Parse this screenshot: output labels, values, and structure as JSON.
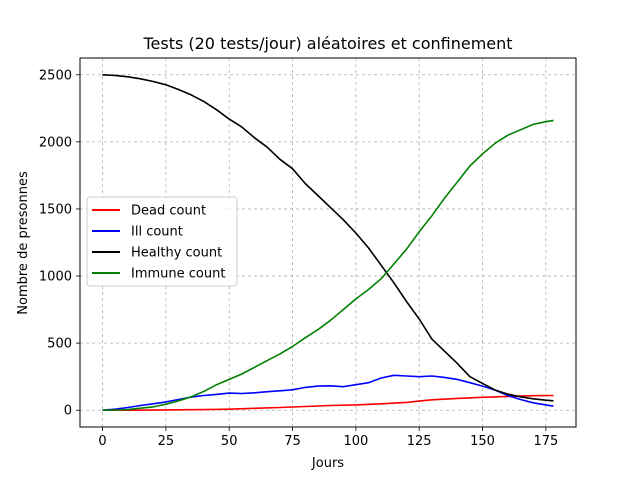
{
  "chart_data": {
    "type": "line",
    "title": "Tests (20 tests/jour) aléatoires et confinement",
    "xlabel": "Jours",
    "ylabel": "Nombre de presonnes",
    "xlim": [
      -8.9,
      186.9
    ],
    "ylim": [
      -125,
      2625
    ],
    "xticks": [
      0,
      25,
      50,
      75,
      100,
      125,
      150,
      175
    ],
    "yticks": [
      0,
      500,
      1000,
      1500,
      2000,
      2500
    ],
    "grid": true,
    "legend_position": "center-left",
    "series": [
      {
        "name": "Dead count",
        "color": "#ff0000",
        "x": [
          0,
          10,
          20,
          30,
          40,
          50,
          60,
          70,
          80,
          90,
          100,
          110,
          120,
          125,
          130,
          140,
          150,
          160,
          170,
          178
        ],
        "y": [
          0,
          0,
          1,
          3,
          5,
          8,
          14,
          20,
          28,
          35,
          40,
          48,
          58,
          68,
          78,
          88,
          96,
          103,
          108,
          110
        ]
      },
      {
        "name": "Ill count",
        "color": "#0000ff",
        "x": [
          0,
          5,
          10,
          15,
          20,
          25,
          30,
          35,
          40,
          45,
          50,
          55,
          60,
          65,
          70,
          75,
          80,
          85,
          90,
          95,
          100,
          105,
          110,
          115,
          120,
          125,
          130,
          135,
          140,
          145,
          150,
          155,
          160,
          165,
          170,
          175,
          178
        ],
        "y": [
          0,
          8,
          20,
          35,
          48,
          62,
          80,
          98,
          110,
          118,
          128,
          125,
          130,
          138,
          145,
          152,
          170,
          180,
          182,
          175,
          190,
          205,
          240,
          260,
          255,
          250,
          255,
          245,
          230,
          205,
          180,
          150,
          110,
          80,
          55,
          40,
          30
        ]
      },
      {
        "name": "Healthy count",
        "color": "#000000",
        "x": [
          0,
          5,
          10,
          15,
          20,
          25,
          30,
          35,
          40,
          45,
          50,
          55,
          60,
          65,
          70,
          75,
          80,
          85,
          90,
          95,
          100,
          105,
          110,
          115,
          120,
          125,
          130,
          135,
          140,
          145,
          150,
          155,
          160,
          165,
          170,
          175,
          178
        ],
        "y": [
          2500,
          2495,
          2485,
          2470,
          2450,
          2425,
          2390,
          2350,
          2300,
          2240,
          2170,
          2110,
          2030,
          1960,
          1870,
          1800,
          1690,
          1600,
          1510,
          1420,
          1320,
          1210,
          1080,
          950,
          810,
          680,
          530,
          440,
          350,
          250,
          200,
          150,
          120,
          100,
          85,
          75,
          70
        ]
      },
      {
        "name": "Immune count",
        "color": "#008000",
        "x": [
          0,
          5,
          10,
          15,
          20,
          25,
          30,
          35,
          40,
          45,
          50,
          55,
          60,
          65,
          70,
          75,
          80,
          85,
          90,
          95,
          100,
          105,
          110,
          115,
          120,
          125,
          130,
          135,
          140,
          145,
          150,
          155,
          160,
          165,
          170,
          175,
          178
        ],
        "y": [
          0,
          2,
          5,
          15,
          25,
          45,
          70,
          100,
          140,
          190,
          230,
          270,
          320,
          370,
          420,
          475,
          540,
          600,
          670,
          750,
          830,
          900,
          980,
          1090,
          1200,
          1330,
          1450,
          1580,
          1700,
          1820,
          1910,
          1990,
          2050,
          2090,
          2130,
          2150,
          2160
        ]
      }
    ]
  }
}
